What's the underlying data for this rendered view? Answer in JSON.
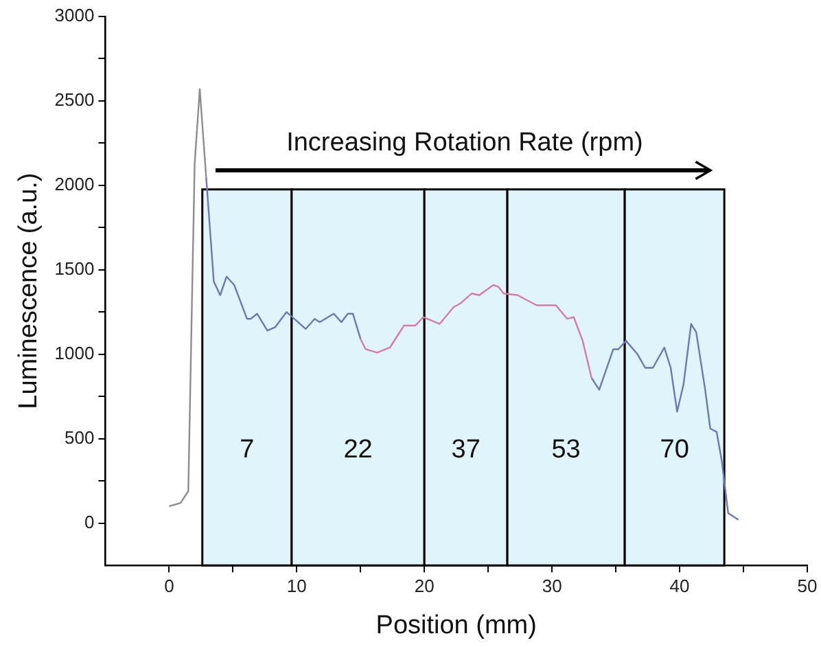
{
  "chart_data": {
    "type": "line",
    "xlabel": "Position (mm)",
    "ylabel": "Luminescence (a.u.)",
    "xlim": [
      -5,
      50
    ],
    "xticks": [
      0,
      10,
      20,
      30,
      40,
      50
    ],
    "ylim": [
      -250,
      3000
    ],
    "yticks": [
      0,
      500,
      1000,
      1500,
      2000,
      2500,
      3000
    ],
    "grid": false,
    "legend": false,
    "marker": "none",
    "line_style": "solid",
    "annotations": [
      "Increasing Rotation Rate (rpm)"
    ],
    "bands": [
      {
        "axis": "x",
        "from": 2.6,
        "to": 9.6,
        "label": "7",
        "color": "#e0f4fc"
      },
      {
        "axis": "x",
        "from": 9.6,
        "to": 20,
        "label": "22",
        "color": "#e0f4fc"
      },
      {
        "axis": "x",
        "from": 20,
        "to": 26.5,
        "label": "37",
        "color": "#e0f4fc"
      },
      {
        "axis": "x",
        "from": 26.5,
        "to": 35.7,
        "label": "53",
        "color": "#e0f4fc"
      },
      {
        "axis": "x",
        "from": 35.7,
        "to": 43.5,
        "label": "70",
        "color": "#e0f4fc"
      }
    ],
    "series": [
      {
        "color": "#8c8c8c",
        "x": [
          0,
          0.9,
          1.5,
          2.0,
          2.4,
          2.9
        ],
        "values": [
          100,
          120,
          190,
          2130,
          2570,
          2050
        ]
      },
      {
        "color": "#6b78b8",
        "x": [
          2.9,
          3.5,
          4.0,
          4.5,
          5.1,
          6.1,
          6.4,
          6.9,
          7.7,
          8.3,
          9.2,
          10.7,
          11.4,
          11.8,
          12.9,
          13.5,
          14.0,
          14.4,
          15.0
        ],
        "values": [
          2050,
          1430,
          1350,
          1460,
          1410,
          1210,
          1210,
          1240,
          1140,
          1160,
          1250,
          1150,
          1210,
          1190,
          1240,
          1190,
          1240,
          1240,
          1090
        ]
      },
      {
        "color": "#d47ca4",
        "x": [
          15.0,
          15.4,
          16.3,
          17.3,
          18.4,
          19.3,
          19.9,
          21.2,
          22.3,
          22.8,
          23.7,
          24.3,
          25.4,
          25.8,
          26.2,
          27.3,
          28.8,
          30.3,
          31.2,
          31.7,
          32.4,
          33.1
        ],
        "values": [
          1090,
          1030,
          1010,
          1040,
          1170,
          1170,
          1220,
          1180,
          1280,
          1300,
          1360,
          1350,
          1410,
          1400,
          1360,
          1350,
          1290,
          1290,
          1210,
          1220,
          1080,
          860
        ]
      },
      {
        "color": "#6b78b8",
        "x": [
          33.1,
          33.7,
          34.8,
          35.2,
          35.8,
          36.7,
          37.3,
          37.9,
          38.8,
          39.3,
          39.8,
          40.3,
          40.9,
          41.3,
          42.0,
          42.4,
          42.9,
          43.3,
          43.8,
          44.6
        ],
        "values": [
          860,
          790,
          1030,
          1030,
          1080,
          1000,
          920,
          920,
          1040,
          920,
          660,
          820,
          1180,
          1130,
          790,
          560,
          540,
          370,
          60,
          20
        ]
      }
    ]
  }
}
